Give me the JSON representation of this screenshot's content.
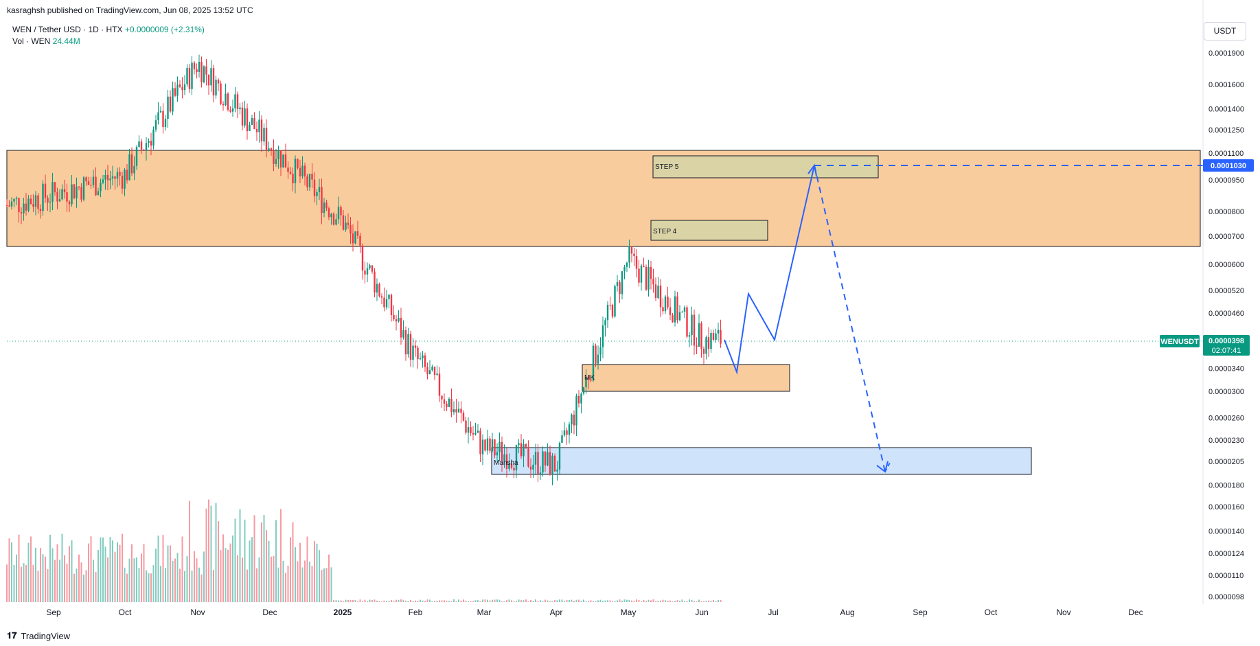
{
  "header": {
    "publisher": "kasraghsh published on TradingView.com, Jun 08, 2025 13:52 UTC",
    "symbol": "WEN / Tether USD · 1D · HTX",
    "change": "+0.0000009 (+2.31%)",
    "vol_label": "Vol · WEN",
    "vol_value": "24.44M"
  },
  "currency_button": "USDT",
  "footer": {
    "logo_text": "TradingView"
  },
  "colors": {
    "up": "#089981",
    "down": "#f23645",
    "accent": "#2962ff",
    "zone_orange": "#f9cc9d",
    "zone_blue": "#cfe3fb",
    "step_box": "#d9d3a6"
  },
  "chart_data": {
    "type": "candlestick",
    "symbol": "WENUSDT",
    "y_scale": "log",
    "y_ticks": [
      "0.0001900",
      "0.0001600",
      "0.0001400",
      "0.0001250",
      "0.0001100",
      "0.0000950",
      "0.0000800",
      "0.0000700",
      "0.0000600",
      "0.0000520",
      "0.0000460",
      "0.0000340",
      "0.0000300",
      "0.0000260",
      "0.0000230",
      "0.0000205",
      "0.0000180",
      "0.0000160",
      "0.0000140",
      "0.0000124",
      "0.0000110",
      "0.0000098"
    ],
    "x_ticks": [
      "Sep",
      "Oct",
      "Nov",
      "Dec",
      "2025",
      "Feb",
      "Mar",
      "Apr",
      "May",
      "Jun",
      "Jul",
      "Aug",
      "Sep",
      "Oct",
      "Nov",
      "Dec"
    ],
    "last_price": {
      "symbol": "WENUSDT",
      "value": "0.0000398",
      "countdown": "02:07:41"
    },
    "target_price": "0.0001030",
    "annotations": [
      {
        "label": "STEP 5"
      },
      {
        "label": "STEP 4"
      },
      {
        "label": "MK"
      },
      {
        "label": "Mansha"
      }
    ],
    "price_path_monthly": [
      {
        "date": "2024-08",
        "price": 8.2e-05
      },
      {
        "date": "2024-09",
        "price": 8.8e-05
      },
      {
        "date": "2024-10",
        "price": 9.8e-05
      },
      {
        "date": "2024-11",
        "price": 0.00018
      },
      {
        "date": "2024-12",
        "price": 0.000115
      },
      {
        "date": "2025-01",
        "price": 7.6e-05
      },
      {
        "date": "2025-02",
        "price": 3.6e-05
      },
      {
        "date": "2025-03",
        "price": 2.2e-05
      },
      {
        "date": "2025-04",
        "price": 2e-05
      },
      {
        "date": "2025-05",
        "price": 6.2e-05
      },
      {
        "date": "2025-06",
        "price": 3.98e-05
      }
    ]
  }
}
